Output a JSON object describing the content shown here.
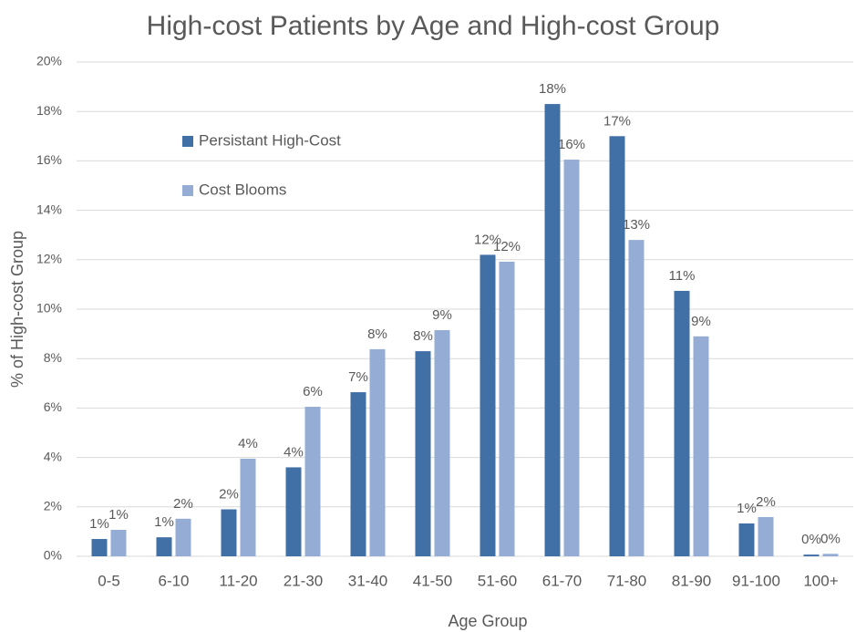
{
  "chart_data": {
    "type": "bar",
    "title": "High-cost Patients by Age and High-cost Group",
    "x_label": "Age Group",
    "y_label": "% of High-cost Group",
    "categories": [
      "0-5",
      "6-10",
      "11-20",
      "21-30",
      "31-40",
      "41-50",
      "51-60",
      "61-70",
      "71-80",
      "81-90",
      "91-100",
      "100+"
    ],
    "series": [
      {
        "name": "Persistant High-Cost",
        "color": "#4170a7",
        "values": [
          0.7,
          0.77,
          1.9,
          3.6,
          6.64,
          8.3,
          12.2,
          18.3,
          17.0,
          10.74,
          1.33,
          0.07
        ],
        "value_labels": [
          "1%",
          "1%",
          "2%",
          "4%",
          "7%",
          "8%",
          "12%",
          "18%",
          "17%",
          "11%",
          "1%",
          "0%"
        ]
      },
      {
        "name": "Cost Blooms",
        "color": "#95acd5",
        "values": [
          1.07,
          1.52,
          3.95,
          6.05,
          8.38,
          9.15,
          11.92,
          16.05,
          12.8,
          8.9,
          1.59,
          0.1
        ],
        "value_labels": [
          "1%",
          "2%",
          "4%",
          "6%",
          "8%",
          "9%",
          "12%",
          "16%",
          "13%",
          "9%",
          "2%",
          "0%"
        ]
      }
    ],
    "ylim": [
      0,
      20
    ],
    "yticks": [
      {
        "value": 0,
        "label": "0%"
      },
      {
        "value": 2,
        "label": "2%"
      },
      {
        "value": 4,
        "label": "4%"
      },
      {
        "value": 6,
        "label": "6%"
      },
      {
        "value": 8,
        "label": "8%"
      },
      {
        "value": 10,
        "label": "10%"
      },
      {
        "value": 12,
        "label": "12%"
      },
      {
        "value": 14,
        "label": "14%"
      },
      {
        "value": 16,
        "label": "16%"
      },
      {
        "value": 18,
        "label": "18%"
      },
      {
        "value": 20,
        "label": "20%"
      }
    ],
    "grid": true,
    "legend": "upper left"
  }
}
